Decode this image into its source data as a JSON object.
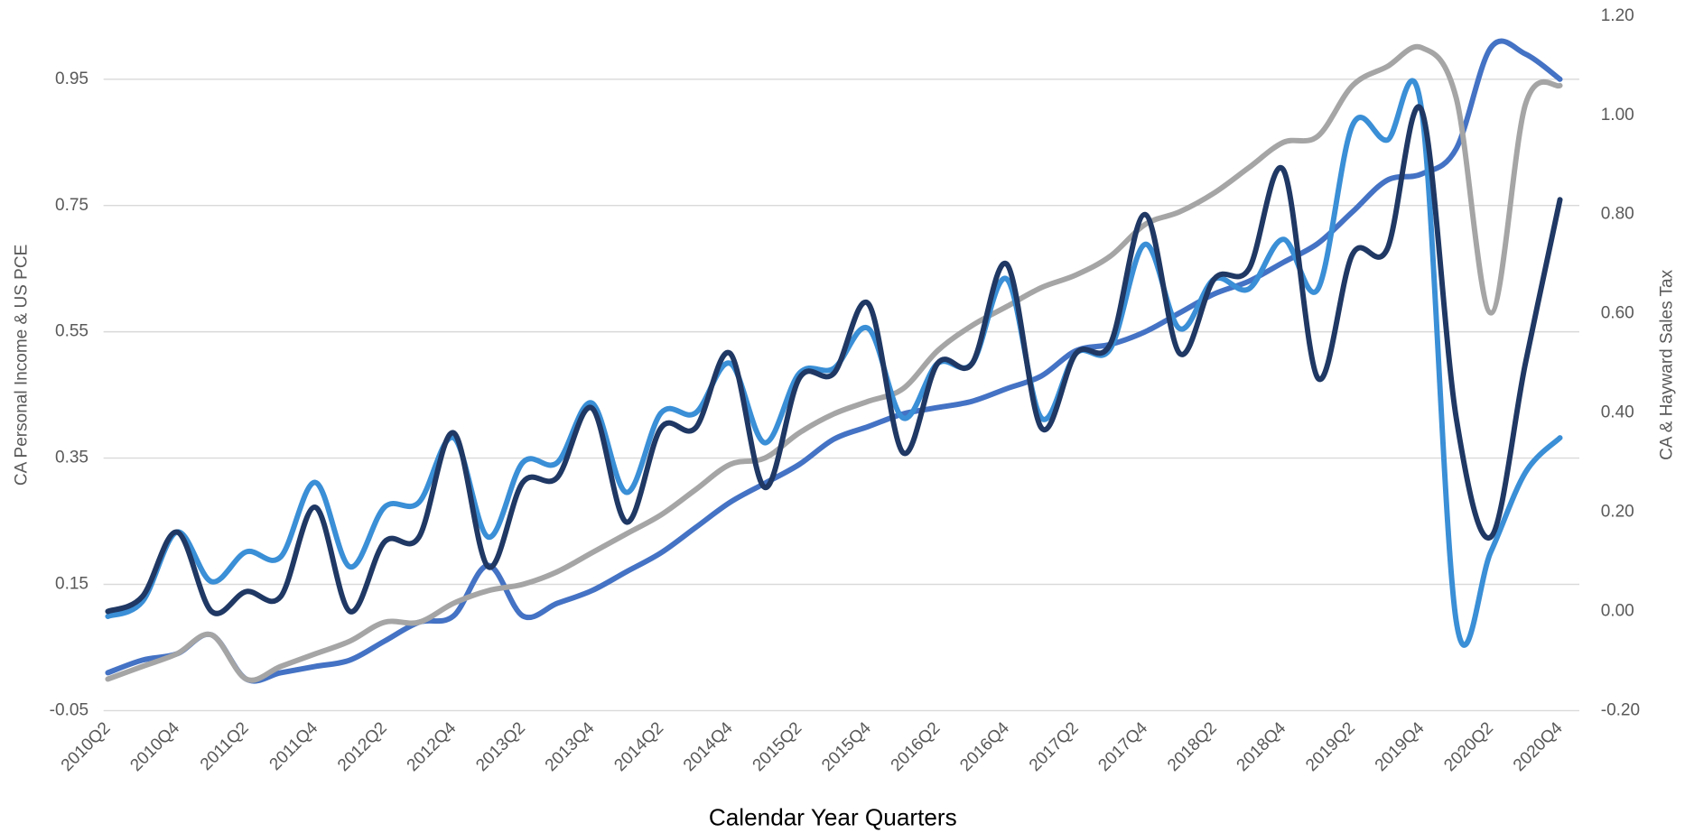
{
  "chart_data": {
    "type": "line",
    "xlabel": "Calendar Year Quarters",
    "ylabel": "CA Personal Income & US PCE",
    "y2label": "CA & Hayward Sales Tax",
    "categories": [
      "2010Q2",
      null,
      "2010Q4",
      null,
      "2011Q2",
      null,
      "2011Q4",
      null,
      "2012Q2",
      null,
      "2012Q4",
      null,
      "2013Q2",
      null,
      "2013Q4",
      null,
      "2014Q2",
      null,
      "2014Q4",
      null,
      "2015Q2",
      null,
      "2015Q4",
      null,
      "2016Q2",
      null,
      "2016Q4",
      null,
      "2017Q2",
      null,
      "2017Q4",
      null,
      "2018Q2",
      null,
      "2018Q4",
      null,
      "2019Q2",
      null,
      "2019Q4",
      null,
      "2020Q2",
      null,
      "2020Q4"
    ],
    "series": [
      {
        "color": "#4472c4",
        "axis": "y",
        "values": [
          0.01,
          0.03,
          0.04,
          0.07,
          0.0,
          0.01,
          0.02,
          0.03,
          0.06,
          0.09,
          0.1,
          0.18,
          0.1,
          0.12,
          0.14,
          0.17,
          0.2,
          0.24,
          0.28,
          0.31,
          0.34,
          0.38,
          0.4,
          0.42,
          0.43,
          0.44,
          0.46,
          0.48,
          0.52,
          0.53,
          0.55,
          0.58,
          0.61,
          0.63,
          0.66,
          0.69,
          0.74,
          0.79,
          0.8,
          0.84,
          1.0,
          0.99,
          0.95
        ]
      },
      {
        "color": "#a5a5a5",
        "axis": "y",
        "values": [
          0.0,
          0.02,
          0.04,
          0.07,
          0.0,
          0.02,
          0.04,
          0.06,
          0.09,
          0.09,
          0.12,
          0.14,
          0.15,
          0.17,
          0.2,
          0.23,
          0.26,
          0.3,
          0.34,
          0.35,
          0.39,
          0.42,
          0.44,
          0.46,
          0.52,
          0.56,
          0.59,
          0.62,
          0.64,
          0.67,
          0.72,
          0.74,
          0.77,
          0.81,
          0.85,
          0.86,
          0.94,
          0.97,
          1.0,
          0.92,
          0.58,
          0.91,
          0.94
        ]
      },
      {
        "color": "#3a8fd6",
        "axis": "y2",
        "values": [
          -0.01,
          0.02,
          0.16,
          0.06,
          0.12,
          0.11,
          0.26,
          0.09,
          0.21,
          0.22,
          0.35,
          0.15,
          0.3,
          0.3,
          0.42,
          0.24,
          0.4,
          0.4,
          0.5,
          0.34,
          0.48,
          0.49,
          0.57,
          0.39,
          0.5,
          0.5,
          0.67,
          0.39,
          0.52,
          0.53,
          0.74,
          0.57,
          0.67,
          0.65,
          0.75,
          0.65,
          0.98,
          0.95,
          1.01,
          -0.02,
          0.12,
          0.28,
          0.35
        ]
      },
      {
        "color": "#1f3864",
        "axis": "y2",
        "values": [
          0.0,
          0.03,
          0.16,
          0.0,
          0.04,
          0.03,
          0.21,
          0.0,
          0.14,
          0.15,
          0.36,
          0.09,
          0.26,
          0.27,
          0.41,
          0.18,
          0.37,
          0.37,
          0.52,
          0.25,
          0.47,
          0.48,
          0.62,
          0.32,
          0.5,
          0.5,
          0.7,
          0.37,
          0.52,
          0.54,
          0.8,
          0.52,
          0.67,
          0.69,
          0.89,
          0.47,
          0.72,
          0.73,
          1.01,
          0.39,
          0.15,
          0.5,
          0.83
        ]
      }
    ],
    "ylim": [
      -0.05,
      1.05
    ],
    "yticks": [
      -0.05,
      0.15,
      0.35,
      0.55,
      0.75,
      0.95
    ],
    "y2lim": [
      -0.2,
      1.2
    ],
    "y2ticks": [
      {
        "value": -0.2,
        "label": "-0.20"
      },
      {
        "value": 0,
        "label": "0.00"
      },
      {
        "value": 0.2,
        "label": "0.20"
      },
      {
        "value": 0.4,
        "label": "0.40"
      },
      {
        "value": 0.6,
        "label": "0.60"
      },
      {
        "value": 0.8,
        "label": "0.80"
      },
      {
        "value": 1.0,
        "label": "1.00"
      },
      {
        "value": 1.2,
        "label": "1.20"
      }
    ],
    "grid": true
  }
}
